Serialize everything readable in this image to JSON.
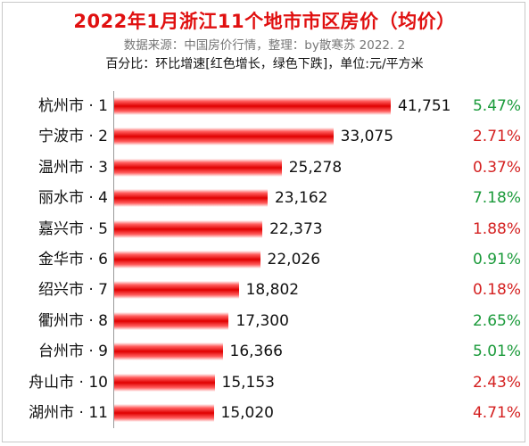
{
  "header": {
    "title": "2022年1月浙江11个地市市区房价（均价）",
    "subtitle": "数据来源：中国房价行情，整理：by散寒苏  2022. 2",
    "note": "百分比：环比增速[红色增长，绿色下跌]，单位:元/平方米"
  },
  "colors": {
    "increase": "#d42020",
    "decrease": "#1a9a3a",
    "bar": "#e00000",
    "title": "#e01010"
  },
  "chart_data": {
    "type": "bar",
    "orientation": "horizontal",
    "title": "2022年1月浙江11个地市市区房价（均价）",
    "xlabel": "",
    "ylabel": "",
    "xlim": [
      0,
      41751
    ],
    "grid": false,
    "categories": [
      "杭州市 · 1",
      "宁波市 · 2",
      "温州市 · 3",
      "丽水市 · 4",
      "嘉兴市 · 5",
      "金华市 · 6",
      "绍兴市 · 7",
      "衢州市 · 8",
      "台州市 · 9",
      "舟山市 · 10",
      "湖州市 · 11"
    ],
    "values": [
      41751,
      33075,
      25278,
      23162,
      22373,
      22026,
      18802,
      17300,
      16366,
      15153,
      15020
    ],
    "value_labels": [
      "41,751",
      "33,075",
      "25,278",
      "23,162",
      "22,373",
      "22,026",
      "18,802",
      "17,300",
      "16,366",
      "15,153",
      "15,020"
    ],
    "mom_change": [
      "5.47%",
      "2.71%",
      "0.37%",
      "7.18%",
      "1.88%",
      "0.91%",
      "0.18%",
      "2.65%",
      "5.01%",
      "2.43%",
      "4.71%"
    ],
    "mom_direction": [
      "down",
      "up",
      "up",
      "down",
      "up",
      "down",
      "up",
      "down",
      "down",
      "up",
      "up"
    ]
  }
}
